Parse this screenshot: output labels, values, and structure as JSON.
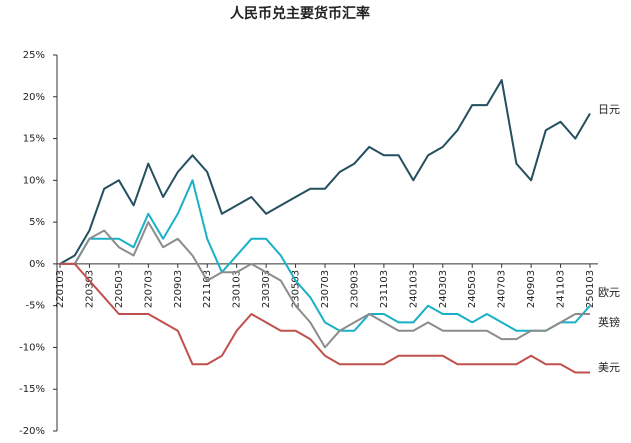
{
  "chart_data": {
    "type": "line",
    "title": "人民币兑主要货币汇率",
    "categories": [
      "220103",
      null,
      "220303",
      null,
      "220503",
      null,
      "220703",
      null,
      "220903",
      null,
      "221103",
      null,
      "230103",
      null,
      "230303",
      null,
      "230503",
      null,
      "230703",
      null,
      "230903",
      null,
      "231103",
      null,
      "240103",
      null,
      "240303",
      null,
      "240503",
      null,
      "240703",
      null,
      "240903",
      null,
      "241103",
      null,
      "250103"
    ],
    "series": [
      {
        "name": "日元",
        "color": "#234f5e",
        "values": [
          0,
          1,
          4,
          9,
          10,
          7,
          12,
          8,
          11,
          13,
          11,
          6,
          7,
          8,
          6,
          7,
          8,
          9,
          9,
          11,
          12,
          14,
          13,
          13,
          10,
          13,
          14,
          16,
          19,
          19,
          22,
          12,
          10,
          16,
          17,
          15,
          18
        ]
      },
      {
        "name": "欧元",
        "color": "#1ab0c8",
        "values": [
          0,
          0,
          3,
          3,
          3,
          2,
          6,
          3,
          6,
          10,
          3,
          -1,
          1,
          3,
          3,
          1,
          -2,
          -4,
          -7,
          -8,
          -8,
          -6,
          -6,
          -7,
          -7,
          -5,
          -6,
          -6,
          -7,
          -6,
          -7,
          -8,
          -8,
          -8,
          -7,
          -7,
          -5
        ]
      },
      {
        "name": "英镑",
        "color": "#8c8c8c",
        "values": [
          0,
          0,
          3,
          4,
          2,
          1,
          5,
          2,
          3,
          1,
          -2,
          -1,
          -1,
          0,
          -1,
          -2,
          -5,
          -7,
          -10,
          -8,
          -7,
          -6,
          -7,
          -8,
          -8,
          -7,
          -8,
          -8,
          -8,
          -8,
          -9,
          -9,
          -8,
          -8,
          -7,
          -6,
          -6
        ]
      },
      {
        "name": "美元",
        "color": "#c0504d",
        "values": [
          0,
          0,
          -2,
          -4,
          -6,
          -6,
          -6,
          -7,
          -8,
          -12,
          -12,
          -11,
          -8,
          -6,
          -7,
          -8,
          -8,
          -9,
          -11,
          -12,
          -12,
          -12,
          -12,
          -11,
          -11,
          -11,
          -11,
          -12,
          -12,
          -12,
          -12,
          -12,
          -11,
          -12,
          -12,
          -13,
          -13
        ]
      }
    ],
    "ylim": [
      -20,
      25
    ],
    "yticks": [
      {
        "value": -20,
        "label": "-20%"
      },
      {
        "value": -15,
        "label": "-15%"
      },
      {
        "value": -10,
        "label": "-10%"
      },
      {
        "value": -5,
        "label": "-5%"
      },
      {
        "value": 0,
        "label": "0%"
      },
      {
        "value": 5,
        "label": "5%"
      },
      {
        "value": 10,
        "label": "10%"
      },
      {
        "value": 15,
        "label": "15%"
      },
      {
        "value": 20,
        "label": "20%"
      },
      {
        "value": 25,
        "label": "25%"
      }
    ],
    "grid": false
  }
}
